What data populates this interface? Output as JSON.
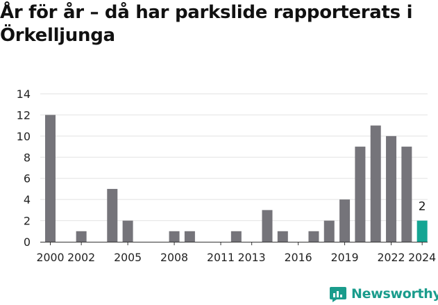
{
  "header": {
    "title": "År för år – då har parkslide rapporterats i Örkelljunga"
  },
  "branding": {
    "name": "Newsworthy",
    "color": "#1a9c8c",
    "icon": "newsworthy-logo-icon"
  },
  "chart_data": {
    "type": "bar",
    "title": "År för år – då har parkslide rapporterats i Örkelljunga",
    "xlabel": "",
    "ylabel": "",
    "categories": [
      2000,
      2001,
      2002,
      2003,
      2004,
      2005,
      2006,
      2007,
      2008,
      2009,
      2010,
      2011,
      2012,
      2013,
      2014,
      2015,
      2016,
      2017,
      2018,
      2019,
      2020,
      2021,
      2022,
      2023,
      2024
    ],
    "values": [
      12,
      0,
      1,
      0,
      5,
      2,
      0,
      0,
      1,
      1,
      0,
      0,
      1,
      0,
      3,
      1,
      0,
      1,
      2,
      4,
      9,
      11,
      10,
      9,
      2
    ],
    "x_tick_labels": [
      "2000",
      "2002",
      "2005",
      "2008",
      "2011",
      "2013",
      "2016",
      "2019",
      "2022",
      "2024"
    ],
    "x_tick_values": [
      2000,
      2002,
      2005,
      2008,
      2011,
      2013,
      2016,
      2019,
      2022,
      2024
    ],
    "y_ticks": [
      0,
      2,
      4,
      6,
      8,
      10,
      12,
      14
    ],
    "ylim": [
      0,
      14
    ],
    "grid": true,
    "legend": "none",
    "bar_color": "#75747a",
    "highlight_color": "#14a593",
    "highlight_category": 2024,
    "data_labels": [
      {
        "category": 2024,
        "text": "2"
      }
    ]
  }
}
